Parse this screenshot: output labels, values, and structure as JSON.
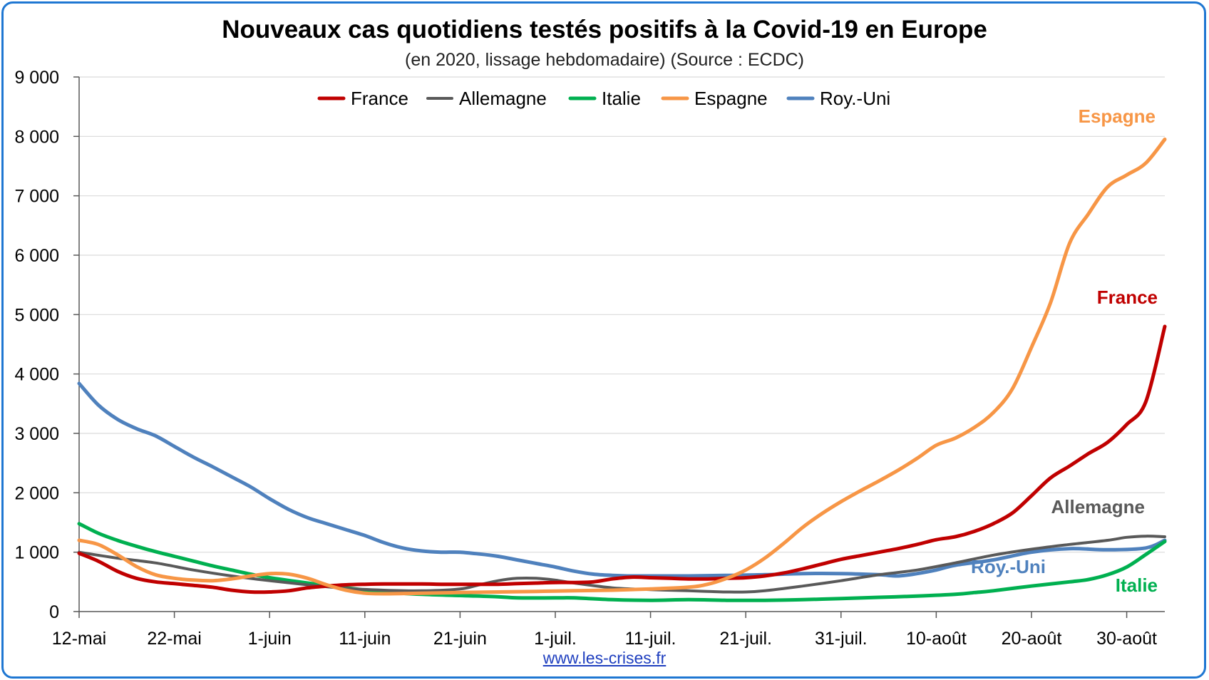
{
  "title": "Nouveaux cas quotidiens testés positifs à la Covid-19 en Europe",
  "subtitle": "(en 2020, lissage hebdomadaire) (Source : ECDC)",
  "source_link": "www.les-crises.fr",
  "chart_data": {
    "type": "line",
    "title": "Nouveaux cas quotidiens testés positifs à la Covid-19 en Europe",
    "subtitle": "(en 2020, lissage hebdomadaire) (Source : ECDC)",
    "xlabel": "",
    "ylabel": "",
    "ylim": [
      0,
      9000
    ],
    "y_ticks": [
      0,
      1000,
      2000,
      3000,
      4000,
      5000,
      6000,
      7000,
      8000,
      9000
    ],
    "y_tick_labels": [
      "0",
      "1 000",
      "2 000",
      "3 000",
      "4 000",
      "5 000",
      "6 000",
      "7 000",
      "8 000",
      "9 000"
    ],
    "x_range_days": [
      0,
      114
    ],
    "x_ticks": [
      0,
      10,
      20,
      30,
      40,
      50,
      60,
      70,
      80,
      90,
      100,
      110
    ],
    "x_tick_labels": [
      "12-mai",
      "22-mai",
      "1-juin",
      "11-juin",
      "21-juin",
      "1-juil.",
      "11-juil.",
      "21-juil.",
      "31-juil.",
      "10-août",
      "20-août",
      "30-août"
    ],
    "grid": "horizontal",
    "legend_position": "top",
    "series": [
      {
        "name": "France",
        "color": "#c00000",
        "end_label": "France",
        "points": [
          [
            0,
            980
          ],
          [
            2,
            850
          ],
          [
            4,
            680
          ],
          [
            6,
            560
          ],
          [
            8,
            500
          ],
          [
            10,
            470
          ],
          [
            12,
            440
          ],
          [
            14,
            410
          ],
          [
            16,
            360
          ],
          [
            18,
            330
          ],
          [
            20,
            330
          ],
          [
            22,
            350
          ],
          [
            24,
            400
          ],
          [
            26,
            430
          ],
          [
            28,
            450
          ],
          [
            30,
            460
          ],
          [
            32,
            465
          ],
          [
            34,
            465
          ],
          [
            36,
            465
          ],
          [
            38,
            460
          ],
          [
            40,
            460
          ],
          [
            42,
            460
          ],
          [
            44,
            460
          ],
          [
            46,
            470
          ],
          [
            48,
            480
          ],
          [
            50,
            490
          ],
          [
            52,
            490
          ],
          [
            54,
            500
          ],
          [
            56,
            550
          ],
          [
            58,
            580
          ],
          [
            60,
            570
          ],
          [
            62,
            560
          ],
          [
            64,
            550
          ],
          [
            66,
            550
          ],
          [
            68,
            560
          ],
          [
            70,
            570
          ],
          [
            72,
            600
          ],
          [
            74,
            650
          ],
          [
            76,
            720
          ],
          [
            78,
            800
          ],
          [
            80,
            880
          ],
          [
            82,
            940
          ],
          [
            84,
            1000
          ],
          [
            86,
            1060
          ],
          [
            88,
            1130
          ],
          [
            90,
            1210
          ],
          [
            92,
            1260
          ],
          [
            94,
            1350
          ],
          [
            96,
            1480
          ],
          [
            98,
            1660
          ],
          [
            100,
            1950
          ],
          [
            102,
            2250
          ],
          [
            104,
            2450
          ],
          [
            106,
            2660
          ],
          [
            108,
            2850
          ],
          [
            110,
            3150
          ],
          [
            112,
            3530
          ],
          [
            114,
            4800
          ]
        ]
      },
      {
        "name": "Allemagne",
        "color": "#595959",
        "end_label": "Allemagne",
        "points": [
          [
            0,
            1000
          ],
          [
            4,
            900
          ],
          [
            8,
            820
          ],
          [
            12,
            700
          ],
          [
            16,
            600
          ],
          [
            20,
            520
          ],
          [
            24,
            450
          ],
          [
            28,
            390
          ],
          [
            32,
            360
          ],
          [
            36,
            350
          ],
          [
            40,
            380
          ],
          [
            42,
            450
          ],
          [
            44,
            520
          ],
          [
            46,
            560
          ],
          [
            48,
            560
          ],
          [
            50,
            530
          ],
          [
            52,
            480
          ],
          [
            56,
            400
          ],
          [
            60,
            370
          ],
          [
            64,
            350
          ],
          [
            66,
            340
          ],
          [
            68,
            330
          ],
          [
            70,
            330
          ],
          [
            72,
            350
          ],
          [
            76,
            430
          ],
          [
            80,
            520
          ],
          [
            84,
            620
          ],
          [
            88,
            700
          ],
          [
            92,
            820
          ],
          [
            96,
            950
          ],
          [
            100,
            1050
          ],
          [
            104,
            1130
          ],
          [
            108,
            1200
          ],
          [
            110,
            1250
          ],
          [
            112,
            1270
          ],
          [
            114,
            1260
          ]
        ]
      },
      {
        "name": "Italie",
        "color": "#00b050",
        "end_label": "Italie",
        "points": [
          [
            0,
            1480
          ],
          [
            2,
            1320
          ],
          [
            4,
            1200
          ],
          [
            6,
            1100
          ],
          [
            8,
            1010
          ],
          [
            10,
            930
          ],
          [
            12,
            850
          ],
          [
            14,
            770
          ],
          [
            16,
            700
          ],
          [
            18,
            630
          ],
          [
            20,
            570
          ],
          [
            24,
            480
          ],
          [
            28,
            400
          ],
          [
            32,
            330
          ],
          [
            36,
            290
          ],
          [
            40,
            270
          ],
          [
            44,
            250
          ],
          [
            46,
            230
          ],
          [
            50,
            230
          ],
          [
            52,
            230
          ],
          [
            56,
            200
          ],
          [
            60,
            190
          ],
          [
            64,
            200
          ],
          [
            68,
            190
          ],
          [
            72,
            190
          ],
          [
            76,
            200
          ],
          [
            80,
            220
          ],
          [
            84,
            240
          ],
          [
            88,
            260
          ],
          [
            92,
            290
          ],
          [
            94,
            320
          ],
          [
            96,
            350
          ],
          [
            100,
            430
          ],
          [
            104,
            500
          ],
          [
            106,
            540
          ],
          [
            108,
            620
          ],
          [
            110,
            750
          ],
          [
            112,
            960
          ],
          [
            114,
            1180
          ]
        ]
      },
      {
        "name": "Espagne",
        "color": "#f79646",
        "end_label": "Espagne",
        "points": [
          [
            0,
            1200
          ],
          [
            2,
            1130
          ],
          [
            4,
            960
          ],
          [
            6,
            760
          ],
          [
            8,
            620
          ],
          [
            10,
            560
          ],
          [
            12,
            530
          ],
          [
            14,
            520
          ],
          [
            16,
            550
          ],
          [
            18,
            600
          ],
          [
            20,
            640
          ],
          [
            22,
            630
          ],
          [
            24,
            560
          ],
          [
            26,
            450
          ],
          [
            28,
            360
          ],
          [
            30,
            310
          ],
          [
            32,
            300
          ],
          [
            36,
            310
          ],
          [
            40,
            320
          ],
          [
            44,
            330
          ],
          [
            48,
            340
          ],
          [
            52,
            350
          ],
          [
            56,
            360
          ],
          [
            60,
            380
          ],
          [
            64,
            410
          ],
          [
            66,
            460
          ],
          [
            68,
            560
          ],
          [
            70,
            700
          ],
          [
            72,
            900
          ],
          [
            74,
            1150
          ],
          [
            76,
            1420
          ],
          [
            78,
            1650
          ],
          [
            80,
            1850
          ],
          [
            82,
            2030
          ],
          [
            84,
            2200
          ],
          [
            86,
            2380
          ],
          [
            88,
            2580
          ],
          [
            90,
            2800
          ],
          [
            92,
            2920
          ],
          [
            94,
            3100
          ],
          [
            96,
            3350
          ],
          [
            98,
            3750
          ],
          [
            100,
            4450
          ],
          [
            102,
            5200
          ],
          [
            104,
            6200
          ],
          [
            106,
            6700
          ],
          [
            108,
            7150
          ],
          [
            110,
            7350
          ],
          [
            112,
            7550
          ],
          [
            114,
            7950
          ]
        ]
      },
      {
        "name": "Roy.-Uni",
        "color": "#4f81bd",
        "end_label": "Roy.-Uni",
        "points": [
          [
            0,
            3840
          ],
          [
            2,
            3480
          ],
          [
            4,
            3240
          ],
          [
            6,
            3080
          ],
          [
            8,
            2960
          ],
          [
            10,
            2780
          ],
          [
            12,
            2600
          ],
          [
            14,
            2440
          ],
          [
            16,
            2270
          ],
          [
            18,
            2100
          ],
          [
            20,
            1900
          ],
          [
            22,
            1720
          ],
          [
            24,
            1580
          ],
          [
            26,
            1480
          ],
          [
            28,
            1380
          ],
          [
            30,
            1280
          ],
          [
            32,
            1160
          ],
          [
            34,
            1070
          ],
          [
            36,
            1020
          ],
          [
            38,
            1000
          ],
          [
            40,
            1000
          ],
          [
            42,
            970
          ],
          [
            44,
            930
          ],
          [
            46,
            870
          ],
          [
            48,
            810
          ],
          [
            50,
            750
          ],
          [
            52,
            680
          ],
          [
            54,
            630
          ],
          [
            56,
            610
          ],
          [
            58,
            600
          ],
          [
            60,
            600
          ],
          [
            64,
            600
          ],
          [
            68,
            610
          ],
          [
            72,
            620
          ],
          [
            76,
            640
          ],
          [
            80,
            640
          ],
          [
            84,
            620
          ],
          [
            86,
            600
          ],
          [
            88,
            640
          ],
          [
            90,
            700
          ],
          [
            92,
            780
          ],
          [
            96,
            870
          ],
          [
            100,
            1000
          ],
          [
            104,
            1060
          ],
          [
            108,
            1040
          ],
          [
            112,
            1070
          ],
          [
            114,
            1200
          ]
        ]
      }
    ]
  }
}
